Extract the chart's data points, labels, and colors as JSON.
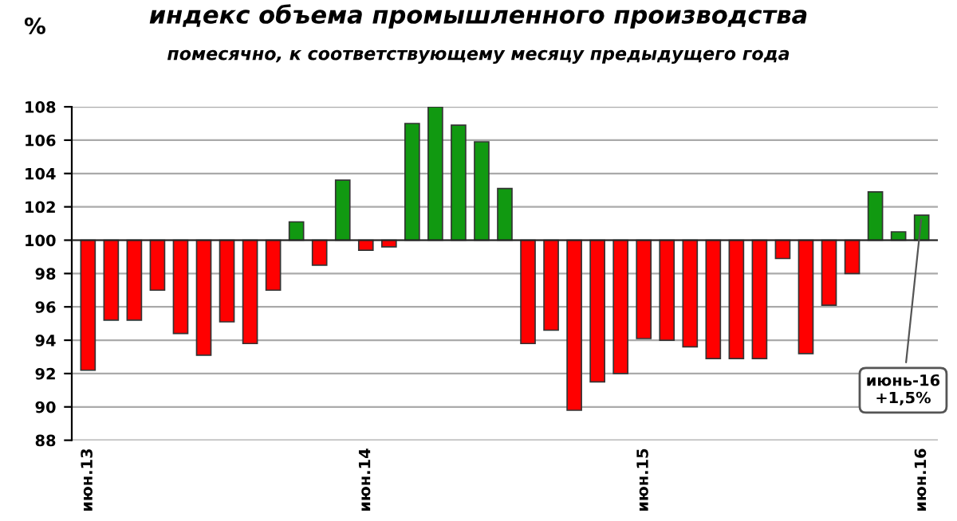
{
  "chart_data": {
    "type": "bar",
    "title": "индекс объема промышленного производства",
    "subtitle": "помесячно, к соответствующему месяцу предыдущего года",
    "ylabel": "%",
    "categories": [
      "июн.13",
      null,
      null,
      null,
      null,
      null,
      null,
      null,
      null,
      null,
      null,
      null,
      "июн.14",
      null,
      null,
      null,
      null,
      null,
      null,
      null,
      null,
      null,
      null,
      null,
      "июн.15",
      null,
      null,
      null,
      null,
      null,
      null,
      null,
      null,
      null,
      null,
      null,
      "июн.16"
    ],
    "base": [
      100,
      100,
      100,
      100,
      100,
      100,
      100,
      100,
      100,
      100,
      100,
      100,
      100,
      100,
      100,
      100,
      100,
      100,
      100,
      100,
      100,
      100,
      100,
      100,
      100,
      100,
      100,
      100,
      100,
      100,
      100,
      100,
      100,
      100,
      100,
      100,
      100
    ],
    "values": [
      -7.8,
      -4.8,
      -4.8,
      -3.0,
      -5.6,
      -6.9,
      -4.9,
      -6.2,
      -3.0,
      1.1,
      -1.5,
      3.6,
      -0.6,
      -0.4,
      7.0,
      8.0,
      6.9,
      5.9,
      3.1,
      -6.2,
      -5.4,
      -10.2,
      -8.5,
      -8.0,
      -5.9,
      -6.0,
      -6.4,
      -7.1,
      -7.1,
      -7.1,
      -1.1,
      -6.8,
      -3.9,
      -2.0,
      2.9,
      0.5,
      1.5
    ],
    "colors": [
      "#ff0000",
      "#ff0000",
      "#ff0000",
      "#ff0000",
      "#ff0000",
      "#ff0000",
      "#ff0000",
      "#ff0000",
      "#ff0000",
      "#119911",
      "#ff0000",
      "#119911",
      "#ff0000",
      "#ff0000",
      "#119911",
      "#119911",
      "#119911",
      "#119911",
      "#119911",
      "#ff0000",
      "#ff0000",
      "#ff0000",
      "#ff0000",
      "#ff0000",
      "#ff0000",
      "#ff0000",
      "#ff0000",
      "#ff0000",
      "#ff0000",
      "#ff0000",
      "#ff0000",
      "#ff0000",
      "#ff0000",
      "#ff0000",
      "#119911",
      "#119911",
      "#119911"
    ],
    "ylim": [
      88,
      108
    ],
    "yticks": [
      88,
      90,
      92,
      94,
      96,
      98,
      100,
      102,
      104,
      106,
      108
    ],
    "grid": "y",
    "ref_lines": [
      {
        "axis": "y",
        "value": 100,
        "color": "#222222"
      }
    ],
    "annotations": [
      {
        "text": "июнь-16\n+1,5%",
        "x": "июн.16",
        "y": 101.5
      }
    ]
  }
}
